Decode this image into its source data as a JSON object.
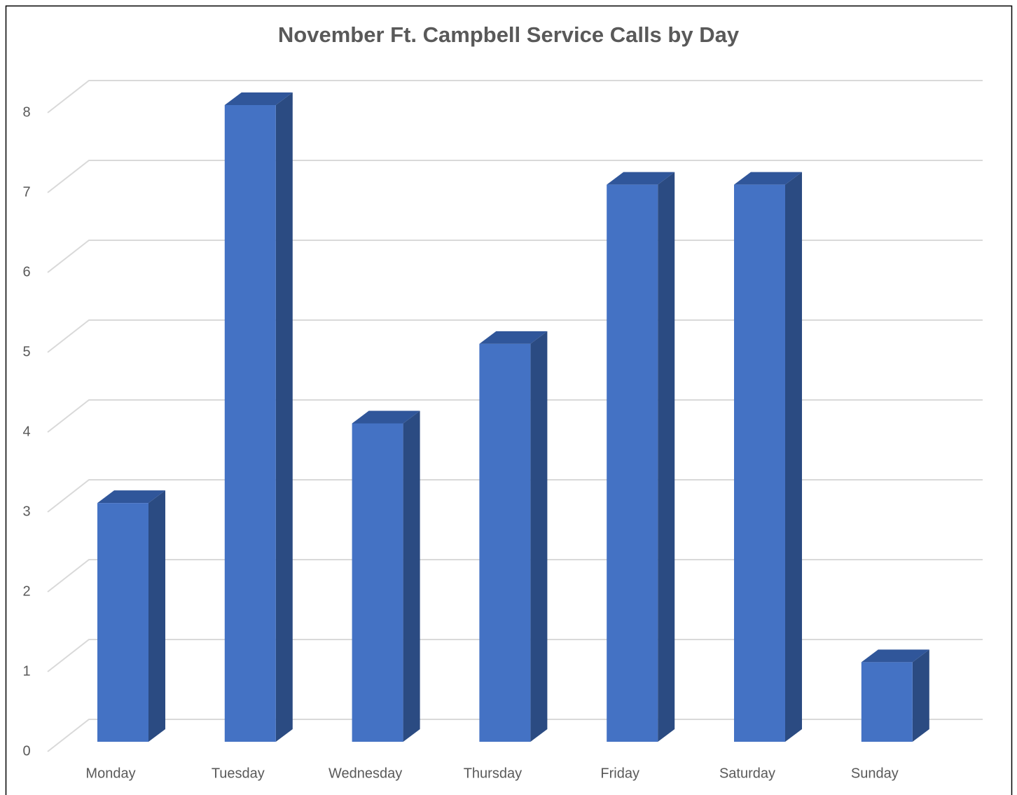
{
  "chart_data": {
    "type": "bar",
    "title": "November Ft. Campbell Service Calls by Day",
    "categories": [
      "Monday",
      "Tuesday",
      "Wednesday",
      "Thursday",
      "Friday",
      "Saturday",
      "Sunday"
    ],
    "values": [
      3,
      8,
      4,
      5,
      7,
      7,
      1
    ],
    "color": "#4472c4",
    "ylim": [
      0,
      8
    ],
    "yticks": [
      0,
      1,
      2,
      3,
      4,
      5,
      6,
      7,
      8
    ],
    "grid": true
  }
}
